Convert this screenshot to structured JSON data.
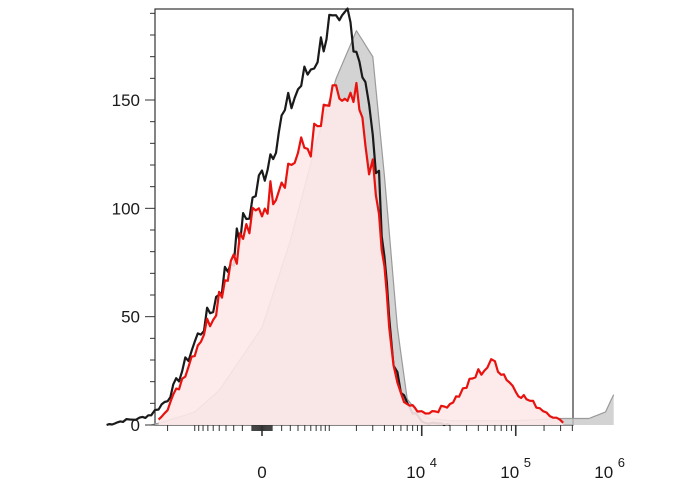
{
  "chart_data": {
    "type": "area",
    "title": "",
    "xlabel": "",
    "ylabel": "",
    "x_scale": "biexponential",
    "ylim": [
      0,
      192
    ],
    "yticks": [
      0,
      50,
      100,
      150
    ],
    "ytick_labels": [
      "0",
      "50",
      "100",
      "150"
    ],
    "xticks": [
      {
        "value": 0,
        "label": "0",
        "exp": ""
      },
      {
        "value": 10000,
        "label": "10",
        "exp": "4"
      },
      {
        "value": 100000,
        "label": "10",
        "exp": "5"
      },
      {
        "value": 1000000,
        "label": "10",
        "exp": "6"
      }
    ],
    "grid": false,
    "legend": "none",
    "series": [
      {
        "role": "control-filled",
        "color": "#9a9a9a",
        "fill": "#c8c8c8",
        "x": [
          -3000,
          -2000,
          -1000,
          -500,
          0,
          300,
          700,
          1200,
          2000,
          3000,
          4000,
          5500,
          7000,
          9000,
          12000,
          20000,
          50000,
          100000,
          300000,
          600000,
          900000,
          1100000
        ],
        "y": [
          0,
          2,
          6,
          16,
          45,
          85,
          130,
          160,
          182,
          170,
          115,
          45,
          12,
          6,
          3,
          2,
          2,
          2,
          3,
          3,
          6,
          14
        ]
      },
      {
        "role": "control",
        "color": "#1a1a1a",
        "x": [
          -9000,
          -6000,
          -4000,
          -3000,
          -2500,
          -2000,
          -1500,
          -1000,
          -600,
          -300,
          0,
          200,
          400,
          600,
          800,
          1000,
          1300,
          1600,
          2000,
          2500,
          3000,
          3500,
          4000,
          4500,
          5000,
          5500,
          6000,
          7000,
          8000,
          9000,
          10000,
          12000,
          20000
        ],
        "y": [
          0,
          2,
          3,
          5,
          8,
          12,
          22,
          38,
          55,
          80,
          115,
          140,
          155,
          165,
          175,
          185,
          180,
          190,
          175,
          160,
          130,
          110,
          80,
          50,
          30,
          22,
          15,
          10,
          6,
          4,
          2,
          1,
          0
        ]
      },
      {
        "role": "sample",
        "color": "#e8120e",
        "fill": "#fde8e8",
        "x": [
          -2500,
          -2000,
          -1500,
          -1000,
          -600,
          -300,
          0,
          200,
          400,
          600,
          800,
          1000,
          1300,
          1600,
          2000,
          2500,
          3000,
          3500,
          4000,
          4500,
          5000,
          5500,
          6000,
          7000,
          8000,
          9000,
          10000,
          12000,
          15000,
          20000,
          25000,
          30000,
          40000,
          50000,
          60000,
          70000,
          80000,
          100000,
          130000,
          180000,
          250000,
          320000
        ],
        "y": [
          3,
          8,
          18,
          35,
          52,
          80,
          100,
          115,
          125,
          130,
          138,
          148,
          152,
          145,
          150,
          130,
          115,
          95,
          70,
          45,
          28,
          18,
          14,
          10,
          8,
          7,
          6,
          6,
          7,
          10,
          14,
          18,
          24,
          27,
          29,
          25,
          22,
          16,
          12,
          8,
          4,
          1
        ]
      }
    ]
  }
}
